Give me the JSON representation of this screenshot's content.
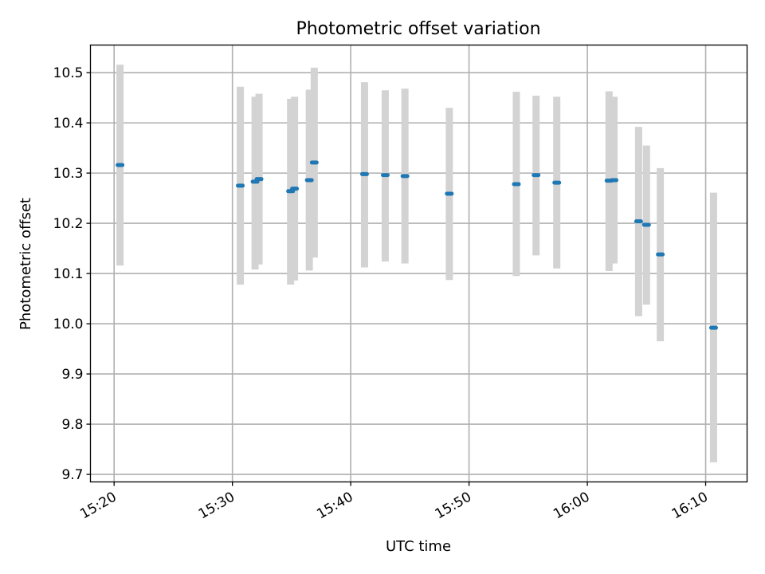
{
  "chart_data": {
    "type": "scatter",
    "title": "Photometric offset variation",
    "xlabel": "UTC time",
    "ylabel": "Photometric offset",
    "date": "2000-01-01",
    "xlim": [
      "15:18:00",
      "16:13:30"
    ],
    "ylim": [
      9.685,
      10.555
    ],
    "grid": true,
    "x_ticks": [
      "15:20",
      "15:30",
      "15:40",
      "15:50",
      "16:00",
      "16:10"
    ],
    "y_ticks": [
      "9.7",
      "9.8",
      "9.9",
      "10.0",
      "10.1",
      "10.2",
      "10.3",
      "10.4",
      "10.5"
    ],
    "marker_color": "#1f77b4",
    "errorbar_color": "#d3d3d3",
    "series": [
      {
        "points": [
          {
            "x": "15:20:30",
            "y": 10.316,
            "yerr_low": 10.116,
            "yerr_high": 10.516
          },
          {
            "x": "15:30:40",
            "y": 10.275,
            "yerr_low": 10.078,
            "yerr_high": 10.472
          },
          {
            "x": "15:31:55",
            "y": 10.283,
            "yerr_low": 10.108,
            "yerr_high": 10.452
          },
          {
            "x": "15:32:15",
            "y": 10.288,
            "yerr_low": 10.118,
            "yerr_high": 10.458
          },
          {
            "x": "15:34:55",
            "y": 10.264,
            "yerr_low": 10.078,
            "yerr_high": 10.448
          },
          {
            "x": "15:35:15",
            "y": 10.269,
            "yerr_low": 10.086,
            "yerr_high": 10.452
          },
          {
            "x": "15:36:30",
            "y": 10.286,
            "yerr_low": 10.106,
            "yerr_high": 10.466
          },
          {
            "x": "15:36:55",
            "y": 10.321,
            "yerr_low": 10.132,
            "yerr_high": 10.51
          },
          {
            "x": "15:41:10",
            "y": 10.298,
            "yerr_low": 10.112,
            "yerr_high": 10.481
          },
          {
            "x": "15:42:55",
            "y": 10.296,
            "yerr_low": 10.124,
            "yerr_high": 10.465
          },
          {
            "x": "15:44:35",
            "y": 10.294,
            "yerr_low": 10.12,
            "yerr_high": 10.468
          },
          {
            "x": "15:48:20",
            "y": 10.259,
            "yerr_low": 10.087,
            "yerr_high": 10.43
          },
          {
            "x": "15:54:00",
            "y": 10.278,
            "yerr_low": 10.095,
            "yerr_high": 10.462
          },
          {
            "x": "15:55:40",
            "y": 10.296,
            "yerr_low": 10.136,
            "yerr_high": 10.454
          },
          {
            "x": "15:57:25",
            "y": 10.281,
            "yerr_low": 10.11,
            "yerr_high": 10.452
          },
          {
            "x": "16:01:50",
            "y": 10.285,
            "yerr_low": 10.105,
            "yerr_high": 10.463
          },
          {
            "x": "16:02:15",
            "y": 10.286,
            "yerr_low": 10.12,
            "yerr_high": 10.452
          },
          {
            "x": "16:04:20",
            "y": 10.204,
            "yerr_low": 10.015,
            "yerr_high": 10.392
          },
          {
            "x": "16:05:00",
            "y": 10.197,
            "yerr_low": 10.038,
            "yerr_high": 10.355
          },
          {
            "x": "16:06:10",
            "y": 10.138,
            "yerr_low": 9.965,
            "yerr_high": 10.31
          },
          {
            "x": "16:10:40",
            "y": 9.992,
            "yerr_low": 9.724,
            "yerr_high": 10.261
          }
        ]
      }
    ]
  }
}
